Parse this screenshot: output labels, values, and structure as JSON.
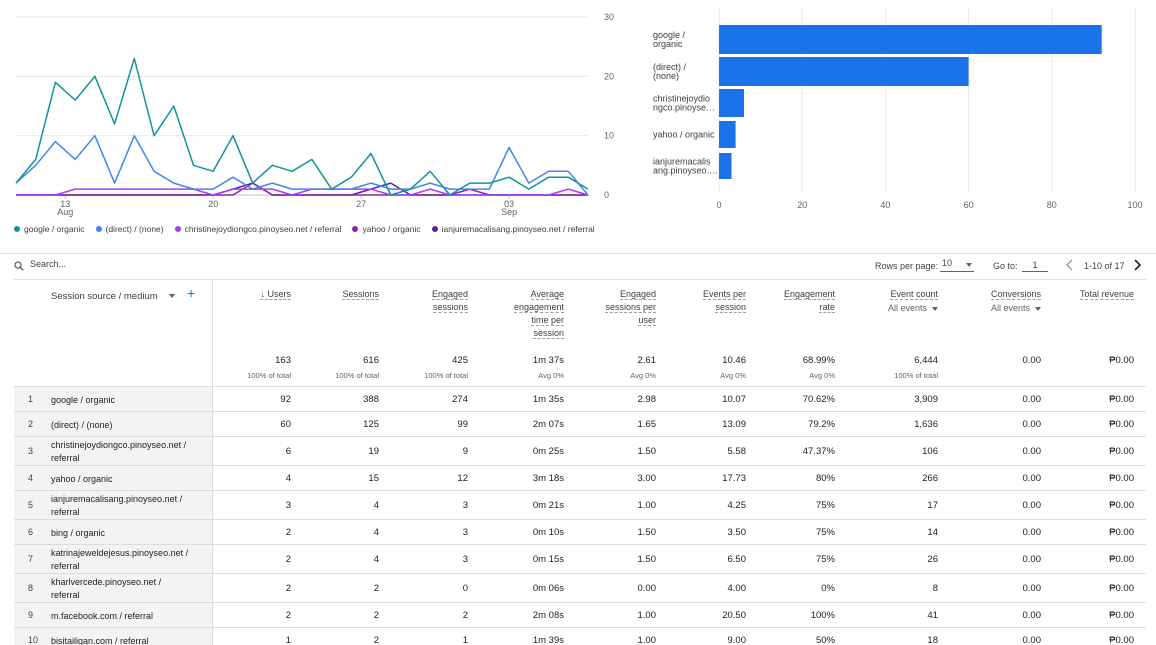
{
  "line_chart": {
    "y_ticks": [
      "30",
      "20",
      "10",
      "0"
    ],
    "x_ticks": [
      {
        "day": "13",
        "month": "Aug"
      },
      {
        "day": "20",
        "month": ""
      },
      {
        "day": "27",
        "month": ""
      },
      {
        "day": "03",
        "month": "Sep"
      }
    ],
    "series": [
      {
        "name": "google / organic",
        "color": "#12939a",
        "values": [
          2,
          6,
          19,
          16,
          20,
          12,
          23,
          10,
          15,
          5,
          4,
          10,
          2,
          5,
          4,
          6,
          1,
          3,
          7,
          0,
          1,
          4,
          0,
          2,
          2,
          3,
          1,
          3,
          3,
          1
        ]
      },
      {
        "name": "(direct) / (none)",
        "color": "#4285f4",
        "values": [
          2,
          5,
          9,
          6,
          10,
          2,
          10,
          4,
          2,
          1,
          1,
          3,
          1,
          2,
          1,
          1,
          1,
          1,
          2,
          1,
          1,
          2,
          1,
          1,
          1,
          8,
          2,
          4,
          4,
          0
        ]
      },
      {
        "name": "christinejoydiongco.pinoyseo.net / referral",
        "color": "#a142f4",
        "values": [
          0,
          0,
          0,
          1,
          1,
          1,
          1,
          1,
          1,
          1,
          0,
          1,
          1,
          1,
          0,
          1,
          1,
          1,
          1,
          0,
          0,
          1,
          0,
          0,
          0,
          0,
          0,
          0,
          1,
          0
        ]
      },
      {
        "name": "yahoo / organic",
        "color": "#8e24aa",
        "values": [
          0,
          0,
          0,
          0,
          0,
          0,
          0,
          0,
          0,
          0,
          0,
          0,
          2,
          0,
          0,
          0,
          0,
          0,
          0,
          0,
          0,
          0,
          0,
          1,
          0,
          0,
          0,
          0,
          0,
          0
        ]
      },
      {
        "name": "ianjuremacalisang.pinoyseo.net / referral",
        "color": "#5e1e9a",
        "values": [
          0,
          0,
          0,
          0,
          0,
          0,
          0,
          0,
          0,
          0,
          0,
          1,
          2,
          0,
          0,
          0,
          0,
          0,
          1,
          2,
          0,
          0,
          0,
          0,
          0,
          0,
          0,
          0,
          0,
          0
        ]
      }
    ]
  },
  "legend": [
    {
      "label": "google / organic",
      "color": "#12939a"
    },
    {
      "label": "(direct) / (none)",
      "color": "#4285f4"
    },
    {
      "label": "christinejoydiongco.pinoyseo.net / referral",
      "color": "#a142f4"
    },
    {
      "label": "yahoo / organic",
      "color": "#8e24aa"
    },
    {
      "label": "ianjuremacalisang.pinoyseo.net / referral",
      "color": "#5e1e9a"
    }
  ],
  "chart_data": {
    "type": "bar",
    "orientation": "horizontal",
    "categories": [
      [
        "google /",
        "organic"
      ],
      [
        "(direct) /",
        "(none)"
      ],
      [
        "christinejoydio",
        "ngco.pinoyse…"
      ],
      [
        "yahoo / organic"
      ],
      [
        "ianjuremacalis",
        "ang.pinoyseo…."
      ]
    ],
    "values": [
      92,
      60,
      6,
      4,
      3
    ],
    "xlim": [
      0,
      100
    ],
    "x_ticks": [
      "0",
      "20",
      "40",
      "60",
      "80",
      "100"
    ],
    "color": "#1a73e8",
    "grid": true
  },
  "toolbar": {
    "search_placeholder": "Search...",
    "rows_label": "Rows per page:",
    "rows_value": "10",
    "goto_label": "Go to:",
    "goto_value": "1",
    "range": "1-10 of 17"
  },
  "table": {
    "dimension_header": "Session source / medium",
    "add_icon": "+",
    "columns": [
      {
        "label": [
          "↓ Users"
        ],
        "total": "163",
        "sub": "100% of total"
      },
      {
        "label": [
          "Sessions"
        ],
        "total": "616",
        "sub": "100% of total"
      },
      {
        "label": [
          "Engaged",
          "sessions"
        ],
        "total": "425",
        "sub": "100% of total"
      },
      {
        "label": [
          "Average",
          "engagement",
          "time per",
          "session"
        ],
        "total": "1m 37s",
        "sub": "Avg 0%"
      },
      {
        "label": [
          "Engaged",
          "sessions per",
          "user"
        ],
        "total": "2.61",
        "sub": "Avg 0%"
      },
      {
        "label": [
          "Events per",
          "session"
        ],
        "total": "10.46",
        "sub": "Avg 0%"
      },
      {
        "label": [
          "Engagement",
          "rate"
        ],
        "total": "68.99%",
        "sub": "Avg 0%"
      },
      {
        "label": [
          "Event count"
        ],
        "dropdown": "All events",
        "total": "6,444",
        "sub": "100% of total"
      },
      {
        "label": [
          "Conversions"
        ],
        "dropdown": "All events",
        "total": "0.00",
        "sub": ""
      },
      {
        "label": [
          "Total revenue"
        ],
        "total": "₱0.00",
        "sub": ""
      }
    ],
    "rows": [
      {
        "n": "1",
        "dim": [
          "google / organic"
        ],
        "vals": [
          "92",
          "388",
          "274",
          "1m 35s",
          "2.98",
          "10.07",
          "70.62%",
          "3,909",
          "0.00",
          "₱0.00"
        ]
      },
      {
        "n": "2",
        "dim": [
          "(direct) / (none)"
        ],
        "vals": [
          "60",
          "125",
          "99",
          "2m 07s",
          "1.65",
          "13.09",
          "79.2%",
          "1,636",
          "0.00",
          "₱0.00"
        ]
      },
      {
        "n": "3",
        "dim": [
          "christinejoydiongco.pinoyseo.net /",
          "referral"
        ],
        "vals": [
          "6",
          "19",
          "9",
          "0m 25s",
          "1.50",
          "5.58",
          "47.37%",
          "106",
          "0.00",
          "₱0.00"
        ]
      },
      {
        "n": "4",
        "dim": [
          "yahoo / organic"
        ],
        "vals": [
          "4",
          "15",
          "12",
          "3m 18s",
          "3.00",
          "17.73",
          "80%",
          "266",
          "0.00",
          "₱0.00"
        ]
      },
      {
        "n": "5",
        "dim": [
          "ianjuremacalisang.pinoyseo.net /",
          "referral"
        ],
        "vals": [
          "3",
          "4",
          "3",
          "0m 21s",
          "1.00",
          "4.25",
          "75%",
          "17",
          "0.00",
          "₱0.00"
        ]
      },
      {
        "n": "6",
        "dim": [
          "bing / organic"
        ],
        "vals": [
          "2",
          "4",
          "3",
          "0m 10s",
          "1.50",
          "3.50",
          "75%",
          "14",
          "0.00",
          "₱0.00"
        ]
      },
      {
        "n": "7",
        "dim": [
          "katrinajeweldejesus.pinoyseo.net /",
          "referral"
        ],
        "vals": [
          "2",
          "4",
          "3",
          "0m 15s",
          "1.50",
          "6.50",
          "75%",
          "26",
          "0.00",
          "₱0.00"
        ]
      },
      {
        "n": "8",
        "dim": [
          "kharlvercede.pinoyseo.net /",
          "referral"
        ],
        "vals": [
          "2",
          "2",
          "0",
          "0m 06s",
          "0.00",
          "4.00",
          "0%",
          "8",
          "0.00",
          "₱0.00"
        ]
      },
      {
        "n": "9",
        "dim": [
          "m.facebook.com / referral"
        ],
        "vals": [
          "2",
          "2",
          "2",
          "2m 08s",
          "1.00",
          "20.50",
          "100%",
          "41",
          "0.00",
          "₱0.00"
        ]
      },
      {
        "n": "10",
        "dim": [
          "bisitailigan.com / referral"
        ],
        "vals": [
          "1",
          "2",
          "1",
          "1m 39s",
          "1.00",
          "9.00",
          "50%",
          "18",
          "0.00",
          "₱0.00"
        ]
      }
    ]
  }
}
